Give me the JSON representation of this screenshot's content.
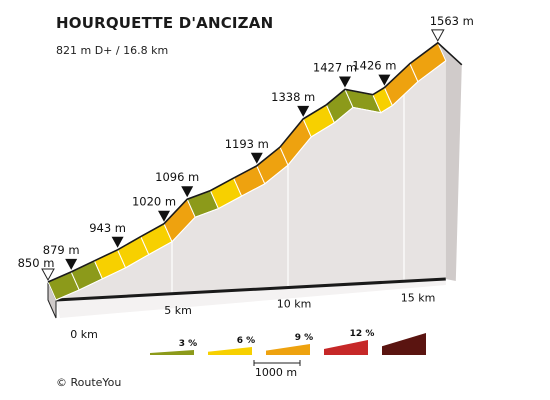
{
  "chart_data": {
    "type": "area",
    "title": "HOURQUETTE D'ANCIZAN",
    "subtitle": "821 m D+ / 16.8 km",
    "profile": [
      {
        "d": 0.0,
        "elev": 850,
        "slope": 3
      },
      {
        "d": 1.0,
        "elev": 879,
        "slope": 3
      },
      {
        "d": 2.0,
        "elev": 911,
        "slope": 6
      },
      {
        "d": 3.0,
        "elev": 943,
        "slope": 6
      },
      {
        "d": 4.0,
        "elev": 982,
        "slope": 6
      },
      {
        "d": 5.0,
        "elev": 1020,
        "slope": 9
      },
      {
        "d": 6.0,
        "elev": 1096,
        "slope": 3
      },
      {
        "d": 7.0,
        "elev": 1120,
        "slope": 6
      },
      {
        "d": 8.0,
        "elev": 1157,
        "slope": 9
      },
      {
        "d": 9.0,
        "elev": 1193,
        "slope": 9
      },
      {
        "d": 10.0,
        "elev": 1250,
        "slope": 9
      },
      {
        "d": 11.0,
        "elev": 1338,
        "slope": 6
      },
      {
        "d": 12.0,
        "elev": 1380,
        "slope": 3
      },
      {
        "d": 12.8,
        "elev": 1427,
        "slope": 3
      },
      {
        "d": 14.0,
        "elev": 1405,
        "slope": 6
      },
      {
        "d": 14.5,
        "elev": 1426,
        "slope": 9
      },
      {
        "d": 15.6,
        "elev": 1500,
        "slope": 9
      },
      {
        "d": 16.8,
        "elev": 1563,
        "slope": null
      }
    ],
    "elevation_markers": [
      {
        "d": 0.0,
        "label": "850 m",
        "marker": "start"
      },
      {
        "d": 1.0,
        "label": "879 m",
        "marker": "point"
      },
      {
        "d": 3.0,
        "label": "943 m",
        "marker": "point"
      },
      {
        "d": 5.0,
        "label": "1020 m",
        "marker": "point"
      },
      {
        "d": 6.0,
        "label": "1096 m",
        "marker": "point"
      },
      {
        "d": 9.0,
        "label": "1193 m",
        "marker": "point"
      },
      {
        "d": 11.0,
        "label": "1338 m",
        "marker": "point"
      },
      {
        "d": 12.8,
        "label": "1427 m",
        "marker": "point"
      },
      {
        "d": 14.5,
        "label": "1426 m",
        "marker": "point"
      },
      {
        "d": 16.8,
        "label": "1563 m",
        "marker": "summit"
      }
    ],
    "distance_ticks": [
      {
        "d": 0,
        "label": "0 km"
      },
      {
        "d": 5,
        "label": "5 km"
      },
      {
        "d": 10,
        "label": "10 km"
      },
      {
        "d": 15,
        "label": "15 km"
      }
    ],
    "xlim": [
      0,
      16.8
    ],
    "ylim": [
      850,
      1563
    ],
    "legend": {
      "items": [
        {
          "label": "3 %",
          "color": "#8c9a1a"
        },
        {
          "label": "6 %",
          "color": "#f7d000"
        },
        {
          "label": "9 %",
          "color": "#eea20f"
        },
        {
          "label": "12 %",
          "color": "#c62828"
        },
        {
          "label": "",
          "color": "#5a1410"
        }
      ],
      "scale_label": "1000 m"
    },
    "slope_colors": {
      "3": "#8c9a1a",
      "6": "#f7d000",
      "9": "#eea20f",
      "12": "#c62828"
    }
  },
  "footer": {
    "copyright": "©  RouteYou"
  }
}
